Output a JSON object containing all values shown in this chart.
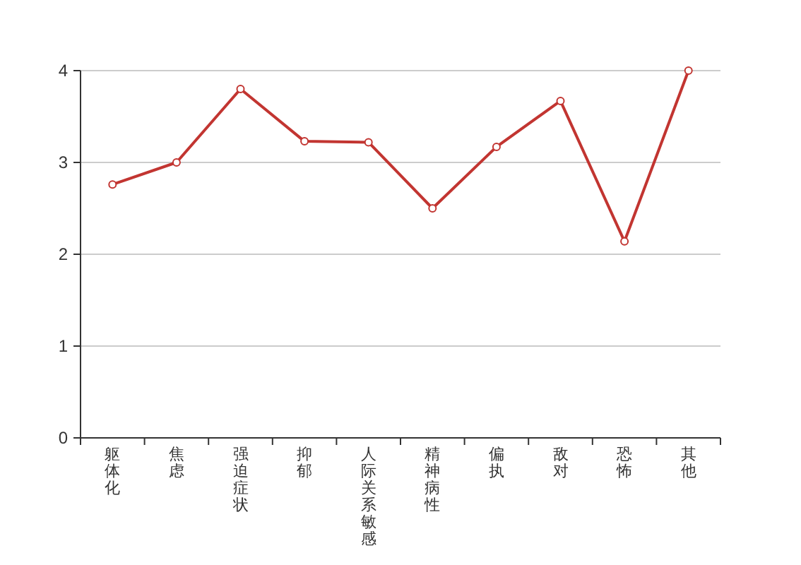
{
  "chart_data": {
    "type": "line",
    "categories": [
      "躯体化",
      "焦虑",
      "强迫症状",
      "抑郁",
      "人际关系敏感",
      "精神病性",
      "偏执",
      "敌对",
      "恐怖",
      "其他"
    ],
    "series": [
      {
        "color": "#c23531",
        "values": [
          2.76,
          3.0,
          3.8,
          3.23,
          3.22,
          2.5,
          3.17,
          3.67,
          2.14,
          4.0
        ]
      }
    ],
    "ylim": [
      0,
      4
    ],
    "yticks": [
      0,
      1,
      2,
      3,
      4
    ],
    "grid": "y",
    "marker": "circle",
    "line_style": "solid"
  }
}
